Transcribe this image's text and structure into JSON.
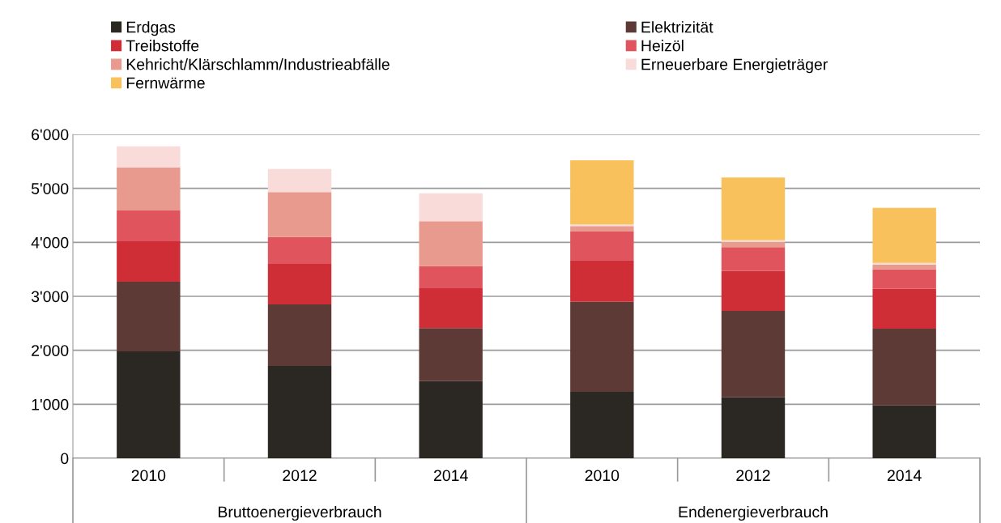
{
  "chart_data": {
    "type": "bar",
    "stacked": true,
    "categories": [
      "2010",
      "2012",
      "2014",
      "2010",
      "2012",
      "2014"
    ],
    "series": [
      {
        "name": "Erdgas",
        "color": "#2b2722",
        "values": [
          1980,
          1710,
          1430,
          1230,
          1130,
          980
        ]
      },
      {
        "name": "Elektrizität",
        "color": "#5e3a36",
        "values": [
          1290,
          1140,
          980,
          1670,
          1600,
          1420
        ]
      },
      {
        "name": "Treibstoffe",
        "color": "#cf2e36",
        "values": [
          750,
          750,
          740,
          770,
          740,
          740
        ]
      },
      {
        "name": "Heizöl",
        "color": "#e0555d",
        "values": [
          570,
          500,
          410,
          530,
          440,
          360
        ]
      },
      {
        "name": "Kehricht/Klärschlamm/Industrieabfälle",
        "color": "#e89a8e",
        "values": [
          800,
          830,
          830,
          100,
          100,
          90
        ]
      },
      {
        "name": "Erneuerbare Energieträger",
        "color": "#f9dcd9",
        "values": [
          390,
          430,
          520,
          30,
          30,
          30
        ]
      },
      {
        "name": "Fernwärme",
        "color": "#f8c15c",
        "values": [
          0,
          0,
          0,
          1190,
          1160,
          1020
        ]
      }
    ],
    "ylim": [
      0,
      6000
    ],
    "yticks": [
      0,
      {
        "value": 1000,
        "label": "1'000"
      },
      {
        "value": 2000,
        "label": "2'000"
      },
      {
        "value": 3000,
        "label": "3'000"
      },
      {
        "value": 4000,
        "label": "4'000"
      },
      {
        "value": 5000,
        "label": "5'000"
      },
      {
        "value": 6000,
        "label": "6'000"
      }
    ],
    "grid": "y",
    "legend": "top left",
    "annotations": [
      "Bruttoenergieverbrauch",
      "Endenergieverbrauch"
    ]
  }
}
